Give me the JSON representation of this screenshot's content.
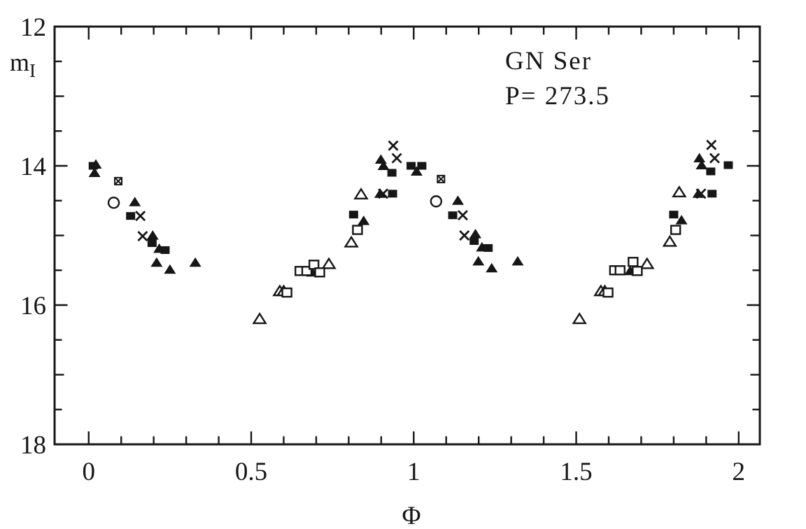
{
  "figure": {
    "title": "GN Ser",
    "subtitle": "P= 273.5",
    "xlabel": "Φ",
    "ylabel_main": "m",
    "ylabel_sub": "I",
    "ink_color": "#161616",
    "background": "#ffffff"
  },
  "chart_data": {
    "type": "scatter",
    "title": "GN Ser",
    "annotation": "P= 273.5",
    "xlabel": "Φ",
    "ylabel": "m_I",
    "grid": false,
    "legend": false,
    "x_axis": {
      "min": -0.105,
      "max": 2.065,
      "major_ticks": [
        0,
        0.5,
        1,
        1.5,
        2
      ],
      "major_tick_labels": [
        "0",
        "0.5",
        "1",
        "1.5",
        "2"
      ],
      "minor_tick_step": 0.1
    },
    "y_axis": {
      "min": 12,
      "max": 18,
      "inverted": true,
      "major_ticks": [
        12,
        14,
        16,
        18
      ],
      "major_tick_labels": [
        "12",
        "14",
        "16",
        "18"
      ],
      "minor_tick_step": 0.5
    },
    "series": [
      {
        "name": "filled squares",
        "marker": "filled-square",
        "points": [
          [
            0.014,
            14.0
          ],
          [
            0.129,
            14.72
          ],
          [
            0.195,
            15.11
          ],
          [
            0.235,
            15.21
          ],
          [
            0.815,
            14.7
          ],
          [
            0.933,
            14.1
          ],
          [
            0.935,
            14.4
          ],
          [
            0.992,
            14.0
          ],
          [
            1.025,
            14.0
          ],
          [
            1.12,
            14.71
          ],
          [
            1.186,
            15.08
          ],
          [
            1.229,
            15.18
          ],
          [
            1.8,
            14.7
          ],
          [
            1.914,
            14.08
          ],
          [
            1.918,
            14.4
          ],
          [
            1.968,
            13.99
          ]
        ]
      },
      {
        "name": "filled triangles",
        "marker": "filled-triangle",
        "points": [
          [
            0.022,
            13.98
          ],
          [
            0.018,
            14.1
          ],
          [
            0.142,
            14.52
          ],
          [
            0.197,
            15.0
          ],
          [
            0.209,
            15.39
          ],
          [
            0.217,
            15.19
          ],
          [
            0.25,
            15.49
          ],
          [
            0.328,
            15.39
          ],
          [
            0.687,
            15.53
          ],
          [
            0.846,
            14.79
          ],
          [
            0.897,
            14.4
          ],
          [
            0.899,
            13.91
          ],
          [
            0.907,
            14.0
          ],
          [
            1.009,
            14.08
          ],
          [
            1.136,
            14.5
          ],
          [
            1.19,
            14.98
          ],
          [
            1.199,
            15.37
          ],
          [
            1.21,
            15.17
          ],
          [
            1.24,
            15.47
          ],
          [
            1.32,
            15.37
          ],
          [
            1.666,
            15.51
          ],
          [
            1.824,
            14.78
          ],
          [
            1.876,
            14.4
          ],
          [
            1.879,
            13.89
          ],
          [
            1.886,
            13.99
          ]
        ]
      },
      {
        "name": "open triangles",
        "marker": "open-triangle",
        "points": [
          [
            0.526,
            16.2
          ],
          [
            0.588,
            15.8
          ],
          [
            0.6,
            15.8
          ],
          [
            0.739,
            15.41
          ],
          [
            0.808,
            15.1
          ],
          [
            0.838,
            14.41
          ],
          [
            1.51,
            16.2
          ],
          [
            1.576,
            15.8
          ],
          [
            1.588,
            15.8
          ],
          [
            1.718,
            15.41
          ],
          [
            1.788,
            15.09
          ],
          [
            1.817,
            14.38
          ]
        ]
      },
      {
        "name": "open squares",
        "marker": "open-square",
        "points": [
          [
            0.61,
            15.82
          ],
          [
            0.65,
            15.51
          ],
          [
            0.671,
            15.51
          ],
          [
            0.693,
            15.42
          ],
          [
            0.711,
            15.53
          ],
          [
            0.827,
            14.92
          ],
          [
            1.598,
            15.82
          ],
          [
            1.618,
            15.5
          ],
          [
            1.635,
            15.5
          ],
          [
            1.675,
            15.38
          ],
          [
            1.688,
            15.51
          ],
          [
            1.806,
            14.92
          ]
        ]
      },
      {
        "name": "crosses",
        "marker": "cross",
        "points": [
          [
            0.159,
            14.72
          ],
          [
            0.166,
            15.01
          ],
          [
            0.906,
            14.4
          ],
          [
            0.937,
            13.71
          ],
          [
            0.948,
            13.89
          ],
          [
            1.151,
            14.71
          ],
          [
            1.156,
            15.0
          ],
          [
            1.884,
            14.4
          ],
          [
            1.916,
            13.7
          ],
          [
            1.926,
            13.89
          ]
        ]
      },
      {
        "name": "open circles",
        "marker": "open-circle",
        "points": [
          [
            0.077,
            14.53
          ],
          [
            1.069,
            14.51
          ]
        ]
      },
      {
        "name": "boxed crosses",
        "marker": "boxed-cross",
        "points": [
          [
            0.091,
            14.22
          ],
          [
            1.084,
            14.19
          ]
        ]
      }
    ]
  }
}
